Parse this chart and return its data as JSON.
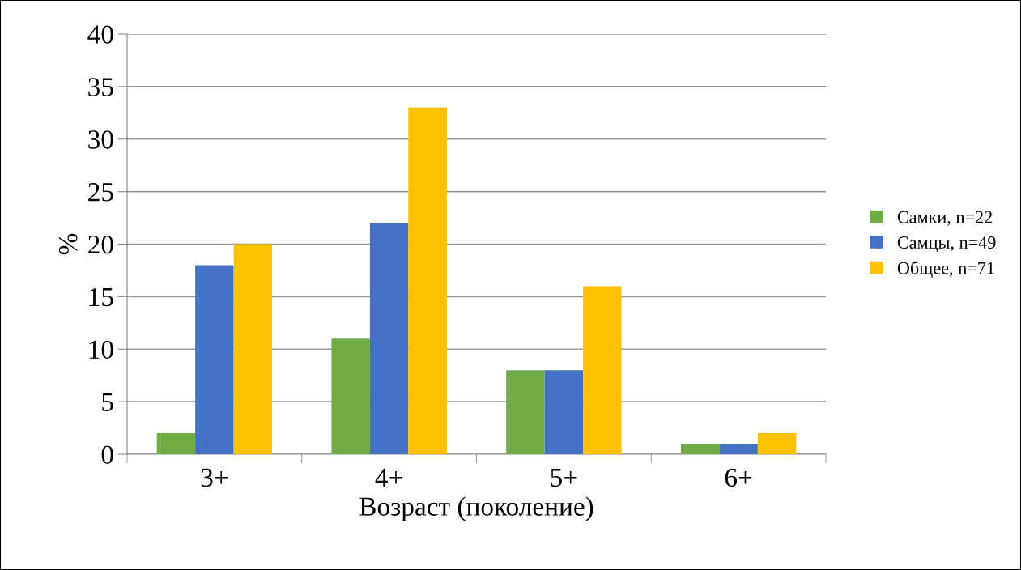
{
  "chart_data": {
    "type": "bar",
    "xlabel": "Возраст (поколение)",
    "ylabel": "%",
    "categories": [
      "3+",
      "4+",
      "5+",
      "6+"
    ],
    "series": [
      {
        "name": "Самки, n=22",
        "color": "#70ad47",
        "values": [
          2,
          11,
          8,
          1
        ]
      },
      {
        "name": "Самцы, n=49",
        "color": "#4472c4",
        "values": [
          18,
          22,
          8,
          1
        ]
      },
      {
        "name": "Общее, n=71",
        "color": "#ffc000",
        "values": [
          20,
          33,
          16,
          2
        ]
      }
    ],
    "ylim": [
      0,
      40
    ],
    "yticks": [
      0,
      5,
      10,
      15,
      20,
      25,
      30,
      35,
      40
    ],
    "grid": "y",
    "legend": "right"
  }
}
